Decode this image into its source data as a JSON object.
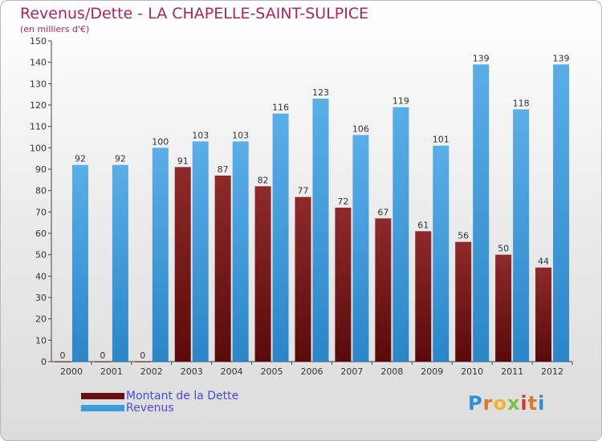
{
  "header": {
    "title": "Revenus/Dette - LA CHAPELLE-SAINT-SULPICE",
    "subtitle": "(en milliers d'€)"
  },
  "brand": {
    "letters": [
      "P",
      "r",
      "o",
      "x",
      "i",
      "t",
      "i"
    ],
    "colors": [
      "#2e8fd6",
      "#e0772a",
      "#f0b428",
      "#7cc242",
      "#d9342b",
      "#e0772a",
      "#2e8fd6"
    ]
  },
  "colors": {
    "dette": "#7a1a1a",
    "revenus": "#3b9ddf",
    "title": "#b0245a",
    "legend_text": "#4a4ae0"
  },
  "chart_data": {
    "type": "bar",
    "title": "Revenus/Dette - LA CHAPELLE-SAINT-SULPICE",
    "ylabel": "(en milliers d'€)",
    "xlabel": "",
    "categories": [
      "2000",
      "2001",
      "2002",
      "2003",
      "2004",
      "2005",
      "2006",
      "2007",
      "2008",
      "2009",
      "2010",
      "2011",
      "2012"
    ],
    "series": [
      {
        "name": "Montant de la Dette",
        "values": [
          0,
          0,
          0,
          91,
          87,
          82,
          77,
          72,
          67,
          61,
          56,
          50,
          44
        ]
      },
      {
        "name": "Revenus",
        "values": [
          92,
          92,
          100,
          103,
          103,
          116,
          123,
          106,
          119,
          101,
          139,
          118,
          139
        ]
      }
    ],
    "ylim": [
      0,
      150
    ],
    "yticks": [
      0,
      10,
      20,
      30,
      40,
      50,
      60,
      70,
      80,
      90,
      100,
      110,
      120,
      130,
      140,
      150
    ],
    "grid": false,
    "legend": "bottom-left"
  }
}
